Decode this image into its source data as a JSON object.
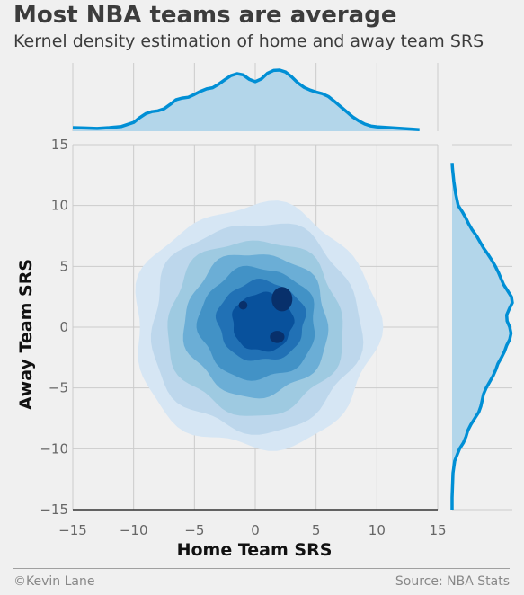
{
  "title": "Most NBA teams are average",
  "subtitle": "Kernel density estimation of home and away team SRS",
  "footer": {
    "left": "©Kevin Lane",
    "right": "Source: NBA Stats"
  },
  "colors": {
    "background": "#f0f0f0",
    "grid": "#cbcbcb",
    "marginal_line": "#008fd5",
    "marginal_fill": "#b3d6ea",
    "contour_levels": [
      "#d6e6f4",
      "#bdd7ec",
      "#9ecae1",
      "#6baed6",
      "#4292c6",
      "#2171b5",
      "#08519c",
      "#08306b"
    ]
  },
  "chart_data": {
    "type": "kde-joint",
    "xlabel": "Home Team SRS",
    "ylabel": "Away Team SRS",
    "xlim": [
      -15,
      15
    ],
    "ylim": [
      -15,
      15
    ],
    "xticks": [
      -15,
      -10,
      -5,
      0,
      5,
      10,
      15
    ],
    "yticks": [
      -15,
      -10,
      -5,
      0,
      5,
      10,
      15
    ],
    "grid": true,
    "marginal_x": {
      "x": [
        -15,
        -14,
        -13,
        -12,
        -11,
        -10,
        -9.5,
        -9,
        -8.5,
        -8,
        -7.5,
        -7,
        -6.5,
        -6,
        -5.5,
        -5,
        -4.5,
        -4,
        -3.5,
        -3,
        -2.5,
        -2,
        -1.5,
        -1,
        -0.5,
        0,
        0.5,
        1,
        1.5,
        2,
        2.5,
        3,
        3.5,
        4,
        4.5,
        5,
        5.5,
        6,
        6.5,
        7,
        7.5,
        8,
        8.5,
        9,
        9.5,
        10,
        11,
        12,
        13,
        13.5
      ],
      "density": [
        0.009,
        0.008,
        0.007,
        0.009,
        0.012,
        0.022,
        0.034,
        0.044,
        0.049,
        0.051,
        0.056,
        0.067,
        0.079,
        0.083,
        0.085,
        0.092,
        0.1,
        0.106,
        0.109,
        0.118,
        0.129,
        0.139,
        0.144,
        0.141,
        0.13,
        0.124,
        0.131,
        0.145,
        0.152,
        0.153,
        0.148,
        0.136,
        0.121,
        0.11,
        0.103,
        0.098,
        0.094,
        0.087,
        0.075,
        0.062,
        0.049,
        0.036,
        0.026,
        0.018,
        0.013,
        0.011,
        0.009,
        0.007,
        0.005,
        0.004
      ]
    },
    "marginal_y": {
      "y": [
        -15,
        -14,
        -13,
        -12,
        -11,
        -10,
        -9.5,
        -9,
        -8.5,
        -8,
        -7.5,
        -7,
        -6.5,
        -6,
        -5.5,
        -5,
        -4.5,
        -4,
        -3.5,
        -3,
        -2.5,
        -2,
        -1.5,
        -1,
        -0.5,
        0,
        0.5,
        1,
        1.5,
        2,
        2.5,
        3,
        3.5,
        4,
        4.5,
        5,
        5.5,
        6,
        6.5,
        7,
        7.5,
        8,
        8.5,
        9,
        9.5,
        10,
        11,
        12,
        13,
        13.5
      ],
      "density": [
        0.0,
        0.0,
        0.001,
        0.002,
        0.006,
        0.017,
        0.026,
        0.032,
        0.036,
        0.043,
        0.052,
        0.061,
        0.066,
        0.069,
        0.072,
        0.078,
        0.086,
        0.094,
        0.1,
        0.105,
        0.113,
        0.12,
        0.125,
        0.132,
        0.135,
        0.132,
        0.126,
        0.125,
        0.131,
        0.138,
        0.136,
        0.127,
        0.118,
        0.112,
        0.106,
        0.099,
        0.091,
        0.082,
        0.072,
        0.064,
        0.056,
        0.046,
        0.038,
        0.031,
        0.023,
        0.014,
        0.008,
        0.004,
        0.001,
        0.0
      ]
    },
    "contours": [
      {
        "level": 1,
        "cx": 0.0,
        "cy": 0.0,
        "rx": 10.0,
        "ry": 10.0
      },
      {
        "level": 2,
        "cx": 0.0,
        "cy": 0.0,
        "rx": 8.6,
        "ry": 8.6
      },
      {
        "level": 3,
        "cx": 0.0,
        "cy": 0.0,
        "rx": 7.2,
        "ry": 7.2
      },
      {
        "level": 4,
        "cx": 0.1,
        "cy": 0.2,
        "rx": 5.9,
        "ry": 5.9
      },
      {
        "level": 5,
        "cx": 0.2,
        "cy": 0.3,
        "rx": 4.8,
        "ry": 4.6
      },
      {
        "level": 6,
        "cx": 0.5,
        "cy": 0.5,
        "rx": 3.6,
        "ry": 3.3
      },
      {
        "level": 7,
        "cx": 0.6,
        "cy": 0.4,
        "rx": 2.5,
        "ry": 2.4
      },
      {
        "level": 8,
        "cx": 2.2,
        "cy": 2.3,
        "rx": 0.85,
        "ry": 1.0
      },
      {
        "level": 8,
        "cx": 1.8,
        "cy": -0.8,
        "rx": 0.6,
        "ry": 0.5
      },
      {
        "level": 8,
        "cx": -1.0,
        "cy": 1.8,
        "rx": 0.35,
        "ry": 0.35
      }
    ]
  }
}
